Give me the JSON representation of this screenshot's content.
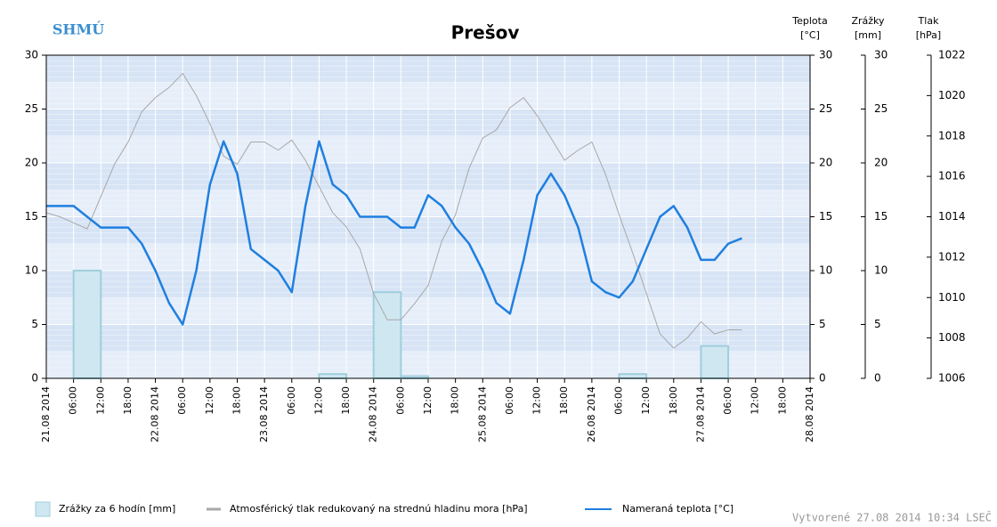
{
  "chart_data": {
    "type": "combo",
    "title": "Prešov",
    "logo_text": "SHMÚ",
    "y_label": [
      "Teplota",
      "[°C]"
    ],
    "y2_label": [
      "Zrážky",
      "[mm]"
    ],
    "y3_label": [
      "Tlak",
      "[hPa]"
    ],
    "created": "Vytvorené 27.08 2014 10:34 LSEČ",
    "xlim": [
      "2014-08-21T00:00",
      "2014-08-28T00:00"
    ],
    "xticks": [
      {
        "value": "2014-08-21T00:00",
        "label": "21.08 2014"
      },
      {
        "value": "2014-08-21T06:00",
        "label": "06:00"
      },
      {
        "value": "2014-08-21T12:00",
        "label": "12:00"
      },
      {
        "value": "2014-08-21T18:00",
        "label": "18:00"
      },
      {
        "value": "2014-08-22T00:00",
        "label": "22.08 2014"
      },
      {
        "value": "2014-08-22T06:00",
        "label": "06:00"
      },
      {
        "value": "2014-08-22T12:00",
        "label": "12:00"
      },
      {
        "value": "2014-08-22T18:00",
        "label": "18:00"
      },
      {
        "value": "2014-08-23T00:00",
        "label": "23.08 2014"
      },
      {
        "value": "2014-08-23T06:00",
        "label": "06:00"
      },
      {
        "value": "2014-08-23T12:00",
        "label": "12:00"
      },
      {
        "value": "2014-08-23T18:00",
        "label": "18:00"
      },
      {
        "value": "2014-08-24T00:00",
        "label": "24.08 2014"
      },
      {
        "value": "2014-08-24T06:00",
        "label": "06:00"
      },
      {
        "value": "2014-08-24T12:00",
        "label": "12:00"
      },
      {
        "value": "2014-08-24T18:00",
        "label": "18:00"
      },
      {
        "value": "2014-08-25T00:00",
        "label": "25.08 2014"
      },
      {
        "value": "2014-08-25T06:00",
        "label": "06:00"
      },
      {
        "value": "2014-08-25T12:00",
        "label": "12:00"
      },
      {
        "value": "2014-08-25T18:00",
        "label": "18:00"
      },
      {
        "value": "2014-08-26T00:00",
        "label": "26.08 2014"
      },
      {
        "value": "2014-08-26T06:00",
        "label": "06:00"
      },
      {
        "value": "2014-08-26T12:00",
        "label": "12:00"
      },
      {
        "value": "2014-08-26T18:00",
        "label": "18:00"
      },
      {
        "value": "2014-08-27T00:00",
        "label": "27.08 2014"
      },
      {
        "value": "2014-08-27T06:00",
        "label": "06:00"
      },
      {
        "value": "2014-08-27T12:00",
        "label": "12:00"
      },
      {
        "value": "2014-08-27T18:00",
        "label": "18:00"
      },
      {
        "value": "2014-08-28T00:00",
        "label": "28.08 2014"
      }
    ],
    "ylim": [
      0,
      30
    ],
    "yticks": [
      0,
      5,
      10,
      15,
      20,
      25,
      30
    ],
    "y2lim": [
      0,
      30
    ],
    "y2ticks": [
      0,
      5,
      10,
      15,
      20,
      25,
      30
    ],
    "y3lim": [
      1006,
      1022
    ],
    "y3ticks": [
      1006,
      1008,
      1010,
      1012,
      1014,
      1016,
      1018,
      1020,
      1022
    ],
    "series": [
      {
        "name": "Zrážky za 6 hodín [mm]",
        "type": "bar",
        "axis": "y2",
        "color": "#cfe7f1",
        "edge_color": "#9fcfdc",
        "x": [
          "2014-08-21T06:00",
          "2014-08-23T12:00",
          "2014-08-24T00:00",
          "2014-08-24T06:00",
          "2014-08-26T06:00",
          "2014-08-27T00:00"
        ],
        "values": [
          10,
          0.4,
          8,
          0.2,
          0.4,
          3
        ]
      },
      {
        "name": "Atmosférický tlak redukovaný na strednú hladinu mora [hPa]",
        "type": "line",
        "axis": "y3",
        "color": "#a8a8a8",
        "x": [
          "2014-08-21T00:00",
          "2014-08-21T03:00",
          "2014-08-21T06:00",
          "2014-08-21T09:00",
          "2014-08-21T12:00",
          "2014-08-21T15:00",
          "2014-08-21T18:00",
          "2014-08-21T21:00",
          "2014-08-22T00:00",
          "2014-08-22T03:00",
          "2014-08-22T06:00",
          "2014-08-22T09:00",
          "2014-08-22T12:00",
          "2014-08-22T15:00",
          "2014-08-22T18:00",
          "2014-08-22T21:00",
          "2014-08-23T00:00",
          "2014-08-23T03:00",
          "2014-08-23T06:00",
          "2014-08-23T09:00",
          "2014-08-23T12:00",
          "2014-08-23T15:00",
          "2014-08-23T18:00",
          "2014-08-23T21:00",
          "2014-08-24T00:00",
          "2014-08-24T03:00",
          "2014-08-24T06:00",
          "2014-08-24T09:00",
          "2014-08-24T12:00",
          "2014-08-24T15:00",
          "2014-08-24T18:00",
          "2014-08-24T21:00",
          "2014-08-25T00:00",
          "2014-08-25T03:00",
          "2014-08-25T06:00",
          "2014-08-25T09:00",
          "2014-08-25T12:00",
          "2014-08-25T15:00",
          "2014-08-25T18:00",
          "2014-08-25T21:00",
          "2014-08-26T00:00",
          "2014-08-26T03:00",
          "2014-08-26T06:00",
          "2014-08-26T09:00",
          "2014-08-26T12:00",
          "2014-08-26T15:00",
          "2014-08-26T18:00",
          "2014-08-26T21:00",
          "2014-08-27T00:00",
          "2014-08-27T03:00",
          "2014-08-27T06:00",
          "2014-08-27T09:00"
        ],
        "values": [
          1014.2,
          1014.0,
          1013.7,
          1013.4,
          1015.0,
          1016.6,
          1017.7,
          1019.2,
          1019.9,
          1020.4,
          1021.1,
          1020.0,
          1018.6,
          1017.0,
          1016.6,
          1017.7,
          1017.7,
          1017.3,
          1017.8,
          1016.8,
          1015.5,
          1014.2,
          1013.5,
          1012.4,
          1010.2,
          1008.9,
          1008.9,
          1009.7,
          1010.6,
          1012.8,
          1014.1,
          1016.4,
          1017.9,
          1018.3,
          1019.4,
          1019.9,
          1019.0,
          1017.9,
          1016.8,
          1017.3,
          1017.7,
          1016.1,
          1014.1,
          1012.2,
          1010.2,
          1008.2,
          1007.5,
          1008.0,
          1008.8,
          1008.2,
          1008.4,
          1008.4
        ]
      },
      {
        "name": "Nameraná teplota [°C]",
        "type": "line",
        "axis": "y",
        "color": "#1f7fe0",
        "x": [
          "2014-08-21T00:00",
          "2014-08-21T03:00",
          "2014-08-21T06:00",
          "2014-08-21T09:00",
          "2014-08-21T12:00",
          "2014-08-21T15:00",
          "2014-08-21T18:00",
          "2014-08-21T21:00",
          "2014-08-22T00:00",
          "2014-08-22T03:00",
          "2014-08-22T06:00",
          "2014-08-22T09:00",
          "2014-08-22T12:00",
          "2014-08-22T15:00",
          "2014-08-22T18:00",
          "2014-08-22T21:00",
          "2014-08-23T00:00",
          "2014-08-23T03:00",
          "2014-08-23T06:00",
          "2014-08-23T09:00",
          "2014-08-23T12:00",
          "2014-08-23T15:00",
          "2014-08-23T18:00",
          "2014-08-23T21:00",
          "2014-08-24T00:00",
          "2014-08-24T03:00",
          "2014-08-24T06:00",
          "2014-08-24T09:00",
          "2014-08-24T12:00",
          "2014-08-24T15:00",
          "2014-08-24T18:00",
          "2014-08-24T21:00",
          "2014-08-25T00:00",
          "2014-08-25T03:00",
          "2014-08-25T06:00",
          "2014-08-25T09:00",
          "2014-08-25T12:00",
          "2014-08-25T15:00",
          "2014-08-25T18:00",
          "2014-08-25T21:00",
          "2014-08-26T00:00",
          "2014-08-26T03:00",
          "2014-08-26T06:00",
          "2014-08-26T09:00",
          "2014-08-26T12:00",
          "2014-08-26T15:00",
          "2014-08-26T18:00",
          "2014-08-26T21:00",
          "2014-08-27T00:00",
          "2014-08-27T03:00",
          "2014-08-27T06:00",
          "2014-08-27T09:00"
        ],
        "values": [
          16,
          16,
          16,
          15,
          14,
          14,
          14,
          12.5,
          10,
          7,
          5,
          10,
          18,
          22,
          19,
          12,
          11,
          10,
          8,
          16,
          22,
          18,
          17,
          15,
          15,
          15,
          14,
          14,
          17,
          16,
          14,
          12.5,
          10,
          7,
          6,
          11,
          17,
          19,
          17,
          14,
          9,
          8,
          7.5,
          9,
          12,
          15,
          16,
          14,
          11,
          11,
          12.5,
          13
        ]
      }
    ]
  }
}
